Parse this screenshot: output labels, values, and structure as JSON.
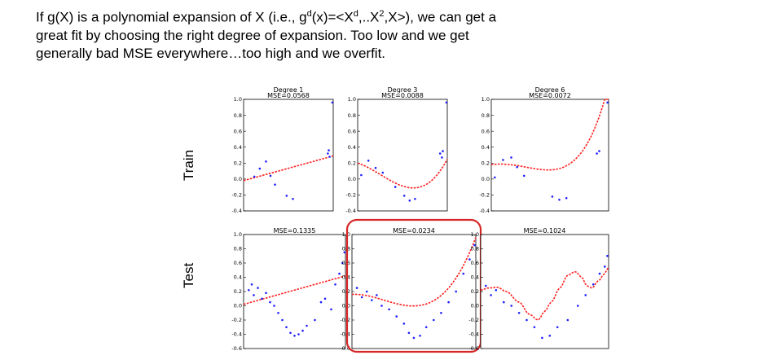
{
  "intro": {
    "line1": "If g(X) is a polynomial expansion of X (i.e., gd(x)=<Xd,..X2,X>), we can get a",
    "line2": "great fit by choosing the right degree of expansion. Too low and we get",
    "line3": "generally bad MSE everywhere…too high and we overfit."
  },
  "row_labels": {
    "train": "Train",
    "test": "Test"
  },
  "colors": {
    "data": "#1f1fff",
    "fit": "#ff1f1f",
    "highlight": "#d62728"
  },
  "chart_data": [
    {
      "type": "scatter",
      "row": "Train",
      "title": "Degree 1",
      "mse_label": "MSE=0.0568",
      "xlim": [
        0,
        1
      ],
      "ylim": [
        -0.4,
        1.0
      ],
      "yticks": [
        "1.0",
        "0.8",
        "0.6",
        "0.4",
        "0.2",
        "0.0",
        "-0.2",
        "-0.4"
      ],
      "points": [
        [
          0.12,
          0.03
        ],
        [
          0.18,
          0.13
        ],
        [
          0.25,
          0.22
        ],
        [
          0.3,
          0.04
        ],
        [
          0.35,
          -0.07
        ],
        [
          0.48,
          -0.21
        ],
        [
          0.55,
          -0.25
        ],
        [
          0.94,
          0.32
        ],
        [
          0.95,
          0.36
        ],
        [
          0.96,
          0.28
        ],
        [
          0.99,
          0.96
        ]
      ],
      "fit": {
        "degree": 1,
        "coef": [
          -0.02,
          0.31
        ]
      }
    },
    {
      "type": "scatter",
      "row": "Train",
      "title": "Degree 3",
      "mse_label": "MSE=0.0088",
      "xlim": [
        0,
        1
      ],
      "ylim": [
        -0.4,
        1.0
      ],
      "yticks": [
        "1.0",
        "0.8",
        "0.6",
        "0.4",
        "0.2",
        "0.0",
        "-0.2",
        "-0.4"
      ],
      "points": [
        [
          0.04,
          0.05
        ],
        [
          0.12,
          0.23
        ],
        [
          0.2,
          0.14
        ],
        [
          0.28,
          0.08
        ],
        [
          0.42,
          -0.1
        ],
        [
          0.52,
          -0.21
        ],
        [
          0.58,
          -0.27
        ],
        [
          0.64,
          -0.25
        ],
        [
          0.92,
          0.32
        ],
        [
          0.94,
          0.27
        ],
        [
          0.95,
          0.35
        ],
        [
          0.99,
          0.96
        ]
      ],
      "fit": {
        "degree": 3,
        "coef": [
          0.2,
          -0.35,
          -1.3,
          1.7
        ]
      }
    },
    {
      "type": "scatter",
      "row": "Train",
      "title": "Degree 6",
      "mse_label": "MSE=0.0072",
      "xlim": [
        0,
        1
      ],
      "ylim": [
        -0.4,
        1.0
      ],
      "yticks": [
        "1.0",
        "0.8",
        "0.6",
        "0.4",
        "0.2",
        "0.0",
        "-0.2",
        "-0.4"
      ],
      "points": [
        [
          0.03,
          0.02
        ],
        [
          0.1,
          0.24
        ],
        [
          0.17,
          0.27
        ],
        [
          0.22,
          0.15
        ],
        [
          0.28,
          0.04
        ],
        [
          0.52,
          -0.22
        ],
        [
          0.58,
          -0.26
        ],
        [
          0.64,
          -0.24
        ],
        [
          0.9,
          0.32
        ],
        [
          0.92,
          0.35
        ],
        [
          0.99,
          0.96
        ]
      ],
      "fit": {
        "degree": 6,
        "coef": [
          0.18,
          0.2,
          -1.4,
          1.0,
          0.8,
          0.2,
          0.2
        ]
      }
    },
    {
      "type": "scatter",
      "row": "Test",
      "title": "",
      "mse_label": "MSE=0.1335",
      "xlim": [
        0,
        1
      ],
      "ylim": [
        -0.6,
        1.0
      ],
      "yticks": [
        "1.0",
        "0.8",
        "0.6",
        "0.4",
        "0.2",
        "0.0",
        "-0.2",
        "-0.4",
        "-0.6"
      ],
      "points": [
        [
          0.05,
          0.22
        ],
        [
          0.08,
          0.3
        ],
        [
          0.1,
          0.15
        ],
        [
          0.14,
          0.25
        ],
        [
          0.18,
          0.1
        ],
        [
          0.22,
          0.18
        ],
        [
          0.26,
          0.05
        ],
        [
          0.3,
          0.0
        ],
        [
          0.34,
          -0.1
        ],
        [
          0.38,
          -0.2
        ],
        [
          0.42,
          -0.3
        ],
        [
          0.46,
          -0.38
        ],
        [
          0.5,
          -0.42
        ],
        [
          0.54,
          -0.4
        ],
        [
          0.58,
          -0.35
        ],
        [
          0.62,
          -0.28
        ],
        [
          0.7,
          -0.2
        ],
        [
          0.76,
          0.05
        ],
        [
          0.8,
          0.1
        ],
        [
          0.86,
          -0.05
        ],
        [
          0.9,
          0.3
        ],
        [
          0.94,
          0.45
        ],
        [
          0.97,
          0.6
        ],
        [
          0.99,
          0.75
        ]
      ],
      "fit": {
        "degree": 1,
        "coef": [
          0.02,
          0.4
        ]
      }
    },
    {
      "type": "scatter",
      "row": "Test",
      "title": "",
      "mse_label": "MSE=0.0234",
      "xlim": [
        0,
        1
      ],
      "ylim": [
        -0.6,
        1.0
      ],
      "yticks": [
        "1.0",
        "0.8",
        "0.6",
        "0.4",
        "0.2",
        "0.0",
        "-0.2",
        "-0.4",
        "-0.6"
      ],
      "points": [
        [
          0.04,
          0.25
        ],
        [
          0.08,
          0.12
        ],
        [
          0.12,
          0.2
        ],
        [
          0.16,
          0.08
        ],
        [
          0.2,
          0.15
        ],
        [
          0.24,
          0.0
        ],
        [
          0.3,
          -0.05
        ],
        [
          0.36,
          -0.15
        ],
        [
          0.42,
          -0.25
        ],
        [
          0.46,
          -0.38
        ],
        [
          0.5,
          -0.45
        ],
        [
          0.55,
          -0.42
        ],
        [
          0.6,
          -0.3
        ],
        [
          0.66,
          -0.2
        ],
        [
          0.72,
          -0.1
        ],
        [
          0.78,
          0.05
        ],
        [
          0.84,
          0.2
        ],
        [
          0.9,
          0.45
        ],
        [
          0.95,
          0.65
        ],
        [
          0.99,
          0.85
        ]
      ],
      "fit": {
        "degree": 3,
        "coef": [
          0.16,
          0.1,
          -2.4,
          3.1
        ]
      }
    },
    {
      "type": "scatter",
      "row": "Test",
      "title": "",
      "mse_label": "MSE=0.1024",
      "xlim": [
        0,
        1
      ],
      "ylim": [
        -0.6,
        1.0
      ],
      "yticks": [
        "1.0",
        "0.8",
        "0.6",
        "0.4",
        "0.2",
        "0.0",
        "-0.2",
        "-0.4",
        "-0.6"
      ],
      "points": [
        [
          0.04,
          0.28
        ],
        [
          0.08,
          0.15
        ],
        [
          0.12,
          0.22
        ],
        [
          0.18,
          0.05
        ],
        [
          0.24,
          0.0
        ],
        [
          0.3,
          -0.1
        ],
        [
          0.36,
          -0.2
        ],
        [
          0.42,
          -0.3
        ],
        [
          0.48,
          -0.45
        ],
        [
          0.54,
          -0.42
        ],
        [
          0.6,
          -0.3
        ],
        [
          0.68,
          -0.2
        ],
        [
          0.76,
          0.0
        ],
        [
          0.82,
          0.15
        ],
        [
          0.88,
          0.3
        ],
        [
          0.93,
          0.45
        ],
        [
          0.97,
          0.55
        ],
        [
          0.99,
          0.7
        ]
      ],
      "fit": {
        "type": "spline",
        "x": [
          0,
          0.06,
          0.13,
          0.2,
          0.3,
          0.38,
          0.45,
          0.5,
          0.55,
          0.62,
          0.68,
          0.74,
          0.79,
          0.83,
          0.87,
          0.92,
          0.97,
          1.0
        ],
        "y": [
          0.22,
          0.25,
          0.26,
          0.2,
          0.05,
          -0.12,
          -0.2,
          -0.08,
          0.05,
          0.25,
          0.43,
          0.48,
          0.4,
          0.28,
          0.25,
          0.35,
          0.45,
          0.55
        ]
      },
      "highlighted": false
    }
  ],
  "highlight_panel": "MSE=0.0234"
}
